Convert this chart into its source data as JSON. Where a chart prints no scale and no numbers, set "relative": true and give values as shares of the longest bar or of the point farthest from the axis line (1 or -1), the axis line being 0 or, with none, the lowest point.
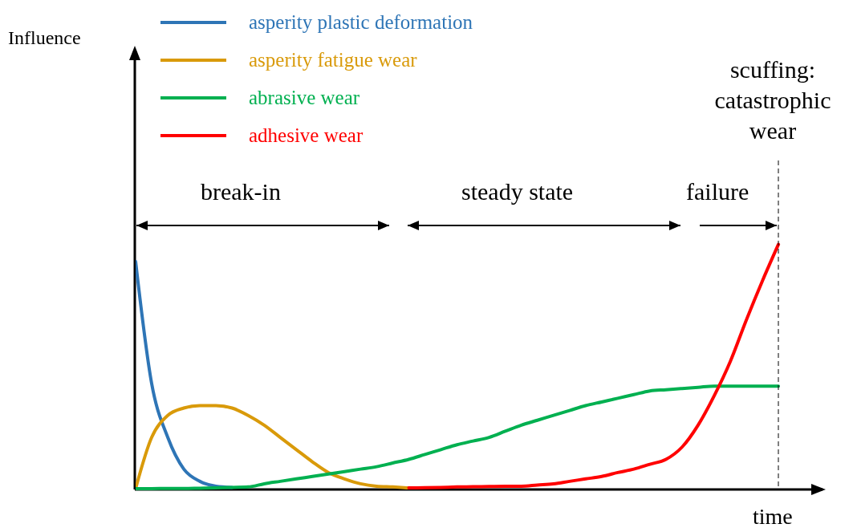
{
  "chart_data": {
    "type": "line",
    "relative": true,
    "xlabel": "time",
    "legend": "top left",
    "categories": [
      null,
      null,
      null,
      null,
      null,
      null,
      null,
      null,
      null,
      null,
      null,
      null,
      null,
      null,
      null,
      null,
      null,
      null,
      null,
      null,
      null,
      null,
      null,
      null,
      null,
      null,
      null,
      null,
      null,
      null,
      null,
      null,
      null,
      null,
      null,
      null,
      null,
      null,
      null,
      null,
      null
    ],
    "series": [
      {
        "name": "asperity plastic deformation",
        "color": "#2e75b6",
        "values": [
          0.93,
          0.43,
          0.21,
          0.08,
          0.03,
          0.01,
          0.005,
          null,
          null,
          null,
          null,
          null,
          null,
          null,
          null,
          null,
          null,
          null,
          null,
          null,
          null,
          null,
          null,
          null,
          null,
          null,
          null,
          null,
          null,
          null,
          null,
          null,
          null,
          null,
          null,
          null,
          null,
          null,
          null,
          null,
          null
        ]
      },
      {
        "name": "asperity fatigue wear",
        "color": "#d99a0a",
        "values": [
          0,
          0.21,
          0.3,
          0.33,
          0.34,
          0.34,
          0.33,
          0.3,
          0.26,
          0.21,
          0.16,
          0.11,
          0.066,
          0.04,
          0.02,
          0.01,
          0.007,
          0.003,
          null,
          null,
          null,
          null,
          null,
          null,
          null,
          null,
          null,
          null,
          null,
          null,
          null,
          null,
          null,
          null,
          null,
          null,
          null,
          null,
          null,
          null,
          null
        ]
      },
      {
        "name": "abrasive wear",
        "color": "#00b050",
        "values": [
          0,
          0,
          0.001,
          0.001,
          0.002,
          0.003,
          0.005,
          0.007,
          0.02,
          0.03,
          0.04,
          0.05,
          0.06,
          0.07,
          0.08,
          0.09,
          0.105,
          0.12,
          0.14,
          0.16,
          0.18,
          0.195,
          0.21,
          0.235,
          0.26,
          0.28,
          0.3,
          0.32,
          0.34,
          0.355,
          0.37,
          0.385,
          0.4,
          0.405,
          0.41,
          0.415,
          0.42,
          0.42,
          0.42,
          0.42,
          0.42
        ]
      },
      {
        "name": "adhesive wear",
        "color": "#ff0000",
        "values": [
          null,
          null,
          null,
          null,
          null,
          null,
          null,
          null,
          null,
          null,
          null,
          null,
          null,
          null,
          null,
          null,
          null,
          0.003,
          0.004,
          0.005,
          0.007,
          0.008,
          0.009,
          0.01,
          0.01,
          0.015,
          0.02,
          0.03,
          0.04,
          0.05,
          0.066,
          0.08,
          0.1,
          0.12,
          0.17,
          0.26,
          0.38,
          0.52,
          0.69,
          0.85,
          1
        ]
      }
    ],
    "annotations": [
      "Influence",
      "break-in",
      "steady state",
      "failure",
      "scuffing: catastrophic wear"
    ]
  }
}
